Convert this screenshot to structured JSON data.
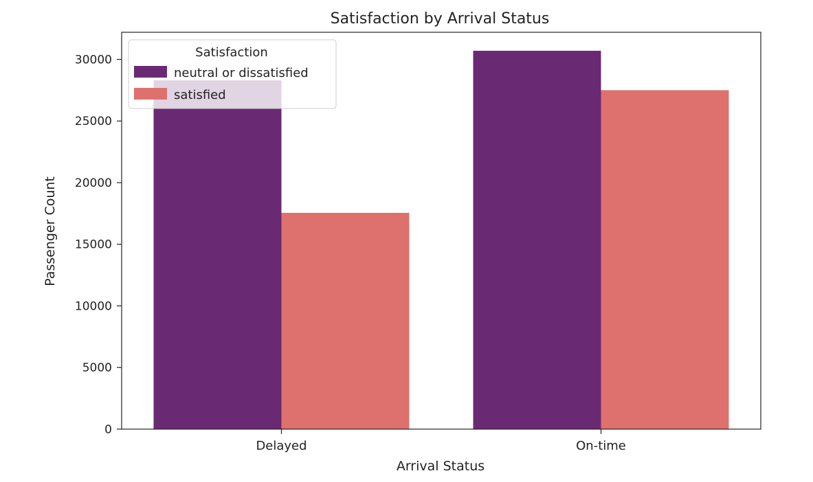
{
  "chart_data": {
    "type": "bar",
    "title": "Satisfaction by Arrival Status",
    "xlabel": "Arrival Status",
    "ylabel": "Passenger Count",
    "categories": [
      "Delayed",
      "On-time"
    ],
    "series": [
      {
        "name": "neutral or dissatisfied",
        "values": [
          28300,
          30700
        ],
        "color": "#6a2a73"
      },
      {
        "name": "satisfied",
        "values": [
          17550,
          27500
        ],
        "color": "#de716d"
      }
    ],
    "ylim": [
      0,
      32200
    ],
    "yticks": [
      0,
      5000,
      10000,
      15000,
      20000,
      25000,
      30000
    ],
    "grid": false,
    "legend": {
      "title": "Satisfaction",
      "position": "top-left"
    }
  }
}
